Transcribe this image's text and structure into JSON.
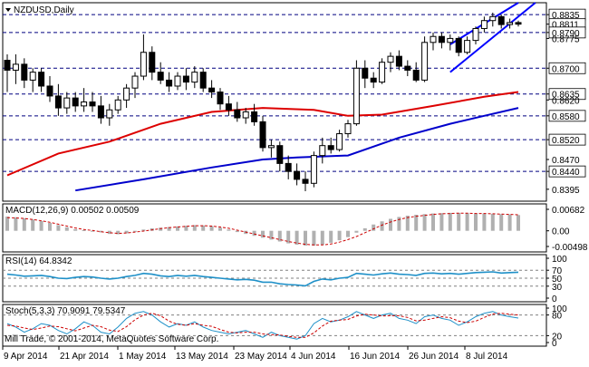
{
  "chart_data": [
    {
      "type": "candlestick",
      "title": "NZDUSD,Daily",
      "ylim": [
        0.8365,
        0.8865
      ],
      "y_ticks": [
        "0.8835",
        "0.8811",
        "0.8790",
        "0.8775",
        "0.8700",
        "0.8635",
        "0.8620",
        "0.8580",
        "0.8520",
        "0.8470",
        "0.8440",
        "0.8395"
      ],
      "horizontal_levels": [
        0.8835,
        0.879,
        0.87,
        0.8635,
        0.858,
        0.852,
        0.844
      ],
      "highlighted_ticks": [
        "0.8835",
        "0.8811",
        "0.8790",
        "0.8700",
        "0.8635",
        "0.8580",
        "0.8520",
        "0.8440"
      ],
      "x_labels": [
        "9 Apr 2014",
        "21 Apr 2014",
        "1 May 2014",
        "13 May 2014",
        "23 May 2014",
        "4 Jun 2014",
        "16 Jun 2014",
        "26 Jun 2014",
        "8 Jul 2014"
      ],
      "candles": [
        {
          "o": 0.872,
          "h": 0.8735,
          "l": 0.864,
          "c": 0.8695
        },
        {
          "o": 0.8695,
          "h": 0.8735,
          "l": 0.866,
          "c": 0.871
        },
        {
          "o": 0.871,
          "h": 0.8725,
          "l": 0.865,
          "c": 0.867
        },
        {
          "o": 0.867,
          "h": 0.87,
          "l": 0.864,
          "c": 0.869
        },
        {
          "o": 0.869,
          "h": 0.87,
          "l": 0.864,
          "c": 0.8655
        },
        {
          "o": 0.8655,
          "h": 0.868,
          "l": 0.8615,
          "c": 0.863
        },
        {
          "o": 0.863,
          "h": 0.866,
          "l": 0.858,
          "c": 0.86
        },
        {
          "o": 0.86,
          "h": 0.864,
          "l": 0.8585,
          "c": 0.8625
        },
        {
          "o": 0.8625,
          "h": 0.864,
          "l": 0.859,
          "c": 0.8605
        },
        {
          "o": 0.8605,
          "h": 0.865,
          "l": 0.859,
          "c": 0.8615
        },
        {
          "o": 0.8615,
          "h": 0.864,
          "l": 0.859,
          "c": 0.8605
        },
        {
          "o": 0.8605,
          "h": 0.863,
          "l": 0.856,
          "c": 0.8575
        },
        {
          "o": 0.8575,
          "h": 0.861,
          "l": 0.8555,
          "c": 0.8595
        },
        {
          "o": 0.8595,
          "h": 0.863,
          "l": 0.8585,
          "c": 0.862
        },
        {
          "o": 0.862,
          "h": 0.866,
          "l": 0.86,
          "c": 0.865
        },
        {
          "o": 0.865,
          "h": 0.869,
          "l": 0.8625,
          "c": 0.868
        },
        {
          "o": 0.868,
          "h": 0.8785,
          "l": 0.867,
          "c": 0.874
        },
        {
          "o": 0.874,
          "h": 0.8755,
          "l": 0.867,
          "c": 0.869
        },
        {
          "o": 0.869,
          "h": 0.8715,
          "l": 0.866,
          "c": 0.867
        },
        {
          "o": 0.867,
          "h": 0.869,
          "l": 0.864,
          "c": 0.8655
        },
        {
          "o": 0.8655,
          "h": 0.869,
          "l": 0.8645,
          "c": 0.868
        },
        {
          "o": 0.868,
          "h": 0.87,
          "l": 0.8645,
          "c": 0.8665
        },
        {
          "o": 0.8665,
          "h": 0.8705,
          "l": 0.865,
          "c": 0.869
        },
        {
          "o": 0.869,
          "h": 0.87,
          "l": 0.864,
          "c": 0.865
        },
        {
          "o": 0.865,
          "h": 0.867,
          "l": 0.8625,
          "c": 0.864
        },
        {
          "o": 0.864,
          "h": 0.865,
          "l": 0.8595,
          "c": 0.861
        },
        {
          "o": 0.861,
          "h": 0.863,
          "l": 0.858,
          "c": 0.8595
        },
        {
          "o": 0.8595,
          "h": 0.8615,
          "l": 0.8565,
          "c": 0.8575
        },
        {
          "o": 0.8575,
          "h": 0.86,
          "l": 0.856,
          "c": 0.859
        },
        {
          "o": 0.859,
          "h": 0.861,
          "l": 0.8555,
          "c": 0.8565
        },
        {
          "o": 0.8565,
          "h": 0.858,
          "l": 0.849,
          "c": 0.85
        },
        {
          "o": 0.85,
          "h": 0.852,
          "l": 0.8475,
          "c": 0.8505
        },
        {
          "o": 0.8505,
          "h": 0.8515,
          "l": 0.844,
          "c": 0.846
        },
        {
          "o": 0.846,
          "h": 0.848,
          "l": 0.842,
          "c": 0.844
        },
        {
          "o": 0.844,
          "h": 0.846,
          "l": 0.8405,
          "c": 0.842
        },
        {
          "o": 0.842,
          "h": 0.844,
          "l": 0.839,
          "c": 0.841
        },
        {
          "o": 0.841,
          "h": 0.849,
          "l": 0.84,
          "c": 0.848
        },
        {
          "o": 0.848,
          "h": 0.8525,
          "l": 0.846,
          "c": 0.8505
        },
        {
          "o": 0.8505,
          "h": 0.8525,
          "l": 0.8485,
          "c": 0.8495
        },
        {
          "o": 0.8495,
          "h": 0.8545,
          "l": 0.849,
          "c": 0.8535
        },
        {
          "o": 0.8535,
          "h": 0.857,
          "l": 0.8525,
          "c": 0.856
        },
        {
          "o": 0.856,
          "h": 0.872,
          "l": 0.8555,
          "c": 0.87
        },
        {
          "o": 0.87,
          "h": 0.872,
          "l": 0.865,
          "c": 0.8675
        },
        {
          "o": 0.8675,
          "h": 0.869,
          "l": 0.865,
          "c": 0.8665
        },
        {
          "o": 0.8665,
          "h": 0.8725,
          "l": 0.866,
          "c": 0.8715
        },
        {
          "o": 0.8715,
          "h": 0.874,
          "l": 0.869,
          "c": 0.873
        },
        {
          "o": 0.873,
          "h": 0.8745,
          "l": 0.8695,
          "c": 0.8705
        },
        {
          "o": 0.8705,
          "h": 0.872,
          "l": 0.868,
          "c": 0.8695
        },
        {
          "o": 0.8695,
          "h": 0.8715,
          "l": 0.8665,
          "c": 0.867
        },
        {
          "o": 0.867,
          "h": 0.878,
          "l": 0.8665,
          "c": 0.8765
        },
        {
          "o": 0.8765,
          "h": 0.879,
          "l": 0.8745,
          "c": 0.878
        },
        {
          "o": 0.878,
          "h": 0.879,
          "l": 0.875,
          "c": 0.8765
        },
        {
          "o": 0.8765,
          "h": 0.8785,
          "l": 0.8745,
          "c": 0.8775
        },
        {
          "o": 0.8775,
          "h": 0.878,
          "l": 0.873,
          "c": 0.874
        },
        {
          "o": 0.874,
          "h": 0.878,
          "l": 0.8735,
          "c": 0.877
        },
        {
          "o": 0.877,
          "h": 0.8805,
          "l": 0.876,
          "c": 0.88
        },
        {
          "o": 0.88,
          "h": 0.883,
          "l": 0.879,
          "c": 0.882
        },
        {
          "o": 0.882,
          "h": 0.884,
          "l": 0.8805,
          "c": 0.883
        },
        {
          "o": 0.883,
          "h": 0.8835,
          "l": 0.88,
          "c": 0.881
        },
        {
          "o": 0.881,
          "h": 0.8825,
          "l": 0.88,
          "c": 0.8815
        },
        {
          "o": 0.8815,
          "h": 0.882,
          "l": 0.8805,
          "c": 0.8811
        }
      ],
      "moving_averages": [
        {
          "color": "#dd0000",
          "points": [
            [
              0,
              0.843
            ],
            [
              6,
              0.8485
            ],
            [
              12,
              0.8515
            ],
            [
              18,
              0.856
            ],
            [
              24,
              0.859
            ],
            [
              30,
              0.86
            ],
            [
              36,
              0.8595
            ],
            [
              40,
              0.858
            ],
            [
              44,
              0.8583
            ],
            [
              50,
              0.8605
            ],
            [
              56,
              0.8628
            ],
            [
              60,
              0.864
            ]
          ]
        },
        {
          "color": "#0000cc",
          "points": [
            [
              8,
              0.8392
            ],
            [
              16,
              0.842
            ],
            [
              24,
              0.845
            ],
            [
              30,
              0.847
            ],
            [
              34,
              0.8475
            ],
            [
              40,
              0.848
            ],
            [
              46,
              0.8525
            ],
            [
              52,
              0.856
            ],
            [
              56,
              0.858
            ],
            [
              60,
              0.86
            ]
          ]
        }
      ],
      "trend_channel": [
        {
          "from": [
            52,
            0.876
          ],
          "to": [
            60,
            0.8865
          ]
        },
        {
          "from": [
            52,
            0.869
          ],
          "to": [
            62,
            0.8865
          ]
        }
      ]
    },
    {
      "type": "bar",
      "title": "MACD(12,26,9) 0.00502 0.00509",
      "y_ticks": [
        "0.00682",
        "0.00",
        "-0.00498"
      ],
      "ylim": [
        -0.00498,
        0.00682
      ],
      "histogram": [
        0.0045,
        0.0043,
        0.004,
        0.0036,
        0.0031,
        0.0025,
        0.0018,
        0.0011,
        0.0005,
        0.0002,
        0.0,
        -0.0005,
        -0.001,
        -0.0011,
        -0.0008,
        -0.0003,
        0.0004,
        0.0008,
        0.001,
        0.0012,
        0.0014,
        0.0016,
        0.0018,
        0.0017,
        0.0015,
        0.001,
        0.0004,
        -0.0004,
        -0.001,
        -0.0016,
        -0.0022,
        -0.0028,
        -0.0034,
        -0.004,
        -0.0044,
        -0.0047,
        -0.0047,
        -0.0044,
        -0.0038,
        -0.003,
        -0.002,
        -0.0006,
        0.0008,
        0.002,
        0.003,
        0.0038,
        0.0044,
        0.0048,
        0.0051,
        0.0053,
        0.0055,
        0.0056,
        0.0057,
        0.0057,
        0.0056,
        0.0055,
        0.0055,
        0.0054,
        0.0053,
        0.0052,
        0.005
      ],
      "signal": [
        0.0042,
        0.0041,
        0.0039,
        0.0036,
        0.0032,
        0.0027,
        0.0021,
        0.0015,
        0.0009,
        0.0004,
        0.0001,
        -0.0003,
        -0.0006,
        -0.0008,
        -0.0007,
        -0.0004,
        -0.0001,
        0.0003,
        0.0007,
        0.001,
        0.0012,
        0.0014,
        0.0016,
        0.0016,
        0.0015,
        0.0012,
        0.0008,
        0.0002,
        -0.0004,
        -0.001,
        -0.0016,
        -0.0022,
        -0.0028,
        -0.0034,
        -0.0039,
        -0.0043,
        -0.0045,
        -0.0045,
        -0.0042,
        -0.0036,
        -0.0028,
        -0.0018,
        -0.0006,
        0.0006,
        0.0018,
        0.0028,
        0.0036,
        0.0042,
        0.0046,
        0.0049,
        0.0052,
        0.0054,
        0.0055,
        0.0056,
        0.0056,
        0.0055,
        0.0055,
        0.0054,
        0.0053,
        0.0052,
        0.0051
      ]
    },
    {
      "type": "line",
      "title": "RSI(14) 64.8342",
      "y_ticks": [
        "100",
        "70",
        "50",
        "30",
        "0"
      ],
      "ylim": [
        0,
        100
      ],
      "levels": [
        70,
        50,
        30
      ],
      "values": [
        60,
        58,
        55,
        56,
        57,
        54,
        50,
        49,
        52,
        54,
        53,
        50,
        48,
        50,
        54,
        57,
        62,
        60,
        56,
        54,
        57,
        55,
        57,
        54,
        52,
        50,
        48,
        46,
        47,
        45,
        40,
        40,
        36,
        34,
        33,
        31,
        42,
        48,
        46,
        50,
        52,
        62,
        60,
        58,
        61,
        63,
        60,
        59,
        57,
        62,
        63,
        61,
        62,
        60,
        62,
        64,
        65,
        66,
        63,
        64,
        65
      ]
    },
    {
      "type": "line",
      "title": "Stoch(5,3,3) 70.9091 79.5347",
      "y_ticks": [
        "100",
        "80",
        "20",
        "0"
      ],
      "ylim": [
        0,
        100
      ],
      "levels": [
        80,
        20
      ],
      "series": [
        {
          "color": "#1e90c8",
          "values": [
            55,
            45,
            30,
            40,
            55,
            50,
            35,
            25,
            40,
            60,
            50,
            30,
            25,
            45,
            70,
            85,
            90,
            80,
            60,
            45,
            55,
            50,
            60,
            45,
            35,
            30,
            25,
            30,
            35,
            25,
            15,
            30,
            20,
            15,
            10,
            20,
            55,
            70,
            60,
            65,
            75,
            90,
            80,
            70,
            80,
            85,
            70,
            65,
            55,
            75,
            80,
            70,
            65,
            50,
            60,
            75,
            85,
            90,
            80,
            75,
            71
          ]
        },
        {
          "color": "#cc0000",
          "values": [
            50,
            48,
            42,
            38,
            42,
            48,
            46,
            40,
            34,
            42,
            50,
            46,
            36,
            32,
            46,
            66,
            80,
            85,
            78,
            62,
            53,
            50,
            55,
            50,
            47,
            38,
            30,
            28,
            30,
            30,
            25,
            23,
            22,
            18,
            15,
            15,
            28,
            48,
            62,
            65,
            67,
            77,
            82,
            80,
            77,
            78,
            78,
            73,
            63,
            65,
            70,
            75,
            72,
            62,
            58,
            62,
            73,
            83,
            85,
            82,
            80
          ]
        }
      ]
    }
  ],
  "footer": {
    "copyright": "Mill Trade, © 2001-2014, MetaQuotes Software Corp."
  }
}
